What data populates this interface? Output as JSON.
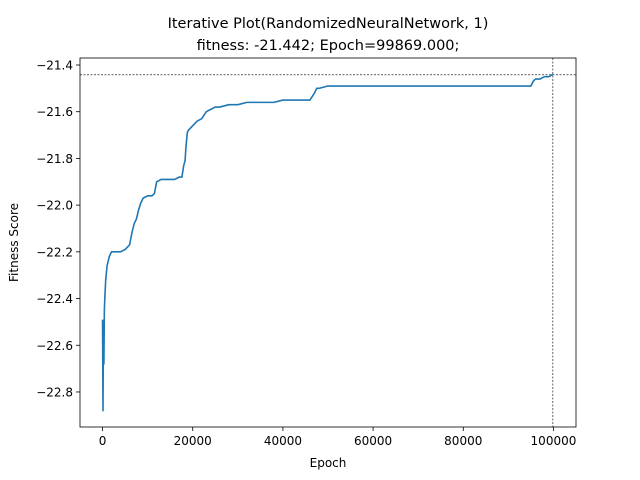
{
  "chart_data": {
    "type": "line",
    "title": "Iterative Plot(RandomizedNeuralNetwork, 1)",
    "subtitle": "fitness: -21.442; Epoch=99869.000;",
    "xlabel": "Epoch",
    "ylabel": "Fitness Score",
    "xlim": [
      -5000,
      105000
    ],
    "ylim": [
      -22.95,
      -21.37
    ],
    "xticks": [
      0,
      20000,
      40000,
      60000,
      80000,
      100000
    ],
    "xtick_labels": [
      "0",
      "20000",
      "40000",
      "60000",
      "80000",
      "100000"
    ],
    "yticks": [
      -22.8,
      -22.6,
      -22.4,
      -22.2,
      -22.0,
      -21.8,
      -21.6,
      -21.4
    ],
    "ytick_labels": [
      "−22.8",
      "−22.6",
      "−22.4",
      "−22.2",
      "−22.0",
      "−21.8",
      "−21.6",
      "−21.4"
    ],
    "grid": false,
    "series_color": "#1f77b4",
    "reference_lines": {
      "hline_y": -21.442,
      "vline_x": 99869,
      "color": "#000000",
      "style": "dashed"
    },
    "series": [
      {
        "x": [
          0,
          100,
          200,
          300,
          400,
          500,
          700,
          1000,
          1500,
          2000,
          3000,
          4000,
          5000,
          5500,
          6000,
          6500,
          7000,
          7500,
          8000,
          8500,
          9000,
          10000,
          11000,
          11500,
          12000,
          13000,
          14000,
          15000,
          16000,
          17000,
          17600,
          18000,
          18300,
          18500,
          18800,
          19000,
          20000,
          21000,
          22000,
          23000,
          24000,
          25000,
          26000,
          28000,
          30000,
          32000,
          34000,
          36000,
          38000,
          40000,
          42000,
          44000,
          46000,
          47000,
          47500,
          48000,
          50000,
          55000,
          60000,
          65000,
          70000,
          75000,
          80000,
          85000,
          90000,
          95000,
          95500,
          96000,
          97000,
          98000,
          99000,
          99869
        ],
        "y": [
          -22.49,
          -22.88,
          -22.5,
          -22.68,
          -22.45,
          -22.4,
          -22.32,
          -22.26,
          -22.22,
          -22.2,
          -22.2,
          -22.2,
          -22.19,
          -22.18,
          -22.17,
          -22.12,
          -22.08,
          -22.06,
          -22.02,
          -21.99,
          -21.97,
          -21.96,
          -21.96,
          -21.95,
          -21.9,
          -21.89,
          -21.89,
          -21.89,
          -21.89,
          -21.88,
          -21.88,
          -21.83,
          -21.81,
          -21.75,
          -21.69,
          -21.68,
          -21.66,
          -21.64,
          -21.63,
          -21.6,
          -21.59,
          -21.58,
          -21.58,
          -21.57,
          -21.57,
          -21.56,
          -21.56,
          -21.56,
          -21.56,
          -21.55,
          -21.55,
          -21.55,
          -21.55,
          -21.52,
          -21.5,
          -21.5,
          -21.49,
          -21.49,
          -21.49,
          -21.49,
          -21.49,
          -21.49,
          -21.49,
          -21.49,
          -21.49,
          -21.49,
          -21.47,
          -21.46,
          -21.46,
          -21.45,
          -21.45,
          -21.44
        ]
      }
    ]
  }
}
